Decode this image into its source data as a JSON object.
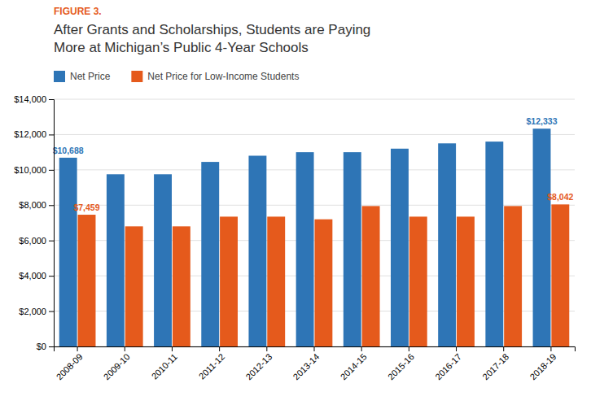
{
  "chart_data": {
    "type": "bar",
    "title": [
      "After Grants and Scholarships, Students are Paying",
      "More at Michigan’s Public 4-Year Schools"
    ],
    "annotations": [
      {
        "text": "FIGURE 3.",
        "color": "#E55A1C"
      }
    ],
    "categories": [
      "2008-09",
      "2009-10",
      "2010-11",
      "2011-12",
      "2012-13",
      "2013-14",
      "2014-15",
      "2015-16",
      "2016-17",
      "2017-18",
      "2018-19"
    ],
    "series": [
      {
        "name": "Net Price",
        "color": "#2E75B6",
        "values": [
          10688,
          9750,
          9750,
          10450,
          10800,
          11000,
          11000,
          11200,
          11500,
          11600,
          12333
        ],
        "value_labels": [
          "$10,688",
          null,
          null,
          null,
          null,
          null,
          null,
          null,
          null,
          null,
          "$12,333"
        ]
      },
      {
        "name": "Net Price for Low-Income Students",
        "color": "#E55A1C",
        "values": [
          7459,
          6800,
          6800,
          7350,
          7350,
          7200,
          7950,
          7350,
          7350,
          7950,
          8042
        ],
        "value_labels": [
          "$7,459",
          null,
          null,
          null,
          null,
          null,
          null,
          null,
          null,
          null,
          "$8,042"
        ]
      }
    ],
    "ylim": [
      0,
      14000
    ],
    "yticks": [
      {
        "value": 0,
        "label": "$0"
      },
      {
        "value": 2000,
        "label": "$2,000"
      },
      {
        "value": 4000,
        "label": "$4,000"
      },
      {
        "value": 6000,
        "label": "$6,000"
      },
      {
        "value": 8000,
        "label": "$8,000"
      },
      {
        "value": 10000,
        "label": "$10,000"
      },
      {
        "value": 12000,
        "label": "$12,000"
      },
      {
        "value": 14000,
        "label": "$14,000"
      }
    ],
    "grid": true,
    "legend": "top-left"
  }
}
